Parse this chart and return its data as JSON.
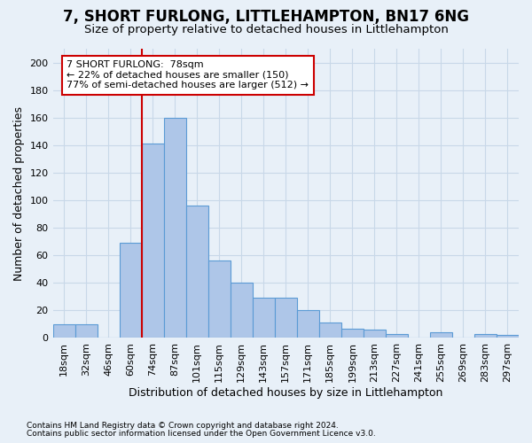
{
  "title": "7, SHORT FURLONG, LITTLEHAMPTON, BN17 6NG",
  "subtitle": "Size of property relative to detached houses in Littlehampton",
  "xlabel": "Distribution of detached houses by size in Littlehampton",
  "ylabel": "Number of detached properties",
  "footnote1": "Contains HM Land Registry data © Crown copyright and database right 2024.",
  "footnote2": "Contains public sector information licensed under the Open Government Licence v3.0.",
  "categories": [
    "18sqm",
    "32sqm",
    "46sqm",
    "60sqm",
    "74sqm",
    "87sqm",
    "101sqm",
    "115sqm",
    "129sqm",
    "143sqm",
    "157sqm",
    "171sqm",
    "185sqm",
    "199sqm",
    "213sqm",
    "227sqm",
    "241sqm",
    "255sqm",
    "269sqm",
    "283sqm",
    "297sqm"
  ],
  "values": [
    10,
    10,
    0,
    69,
    141,
    160,
    96,
    56,
    40,
    29,
    29,
    20,
    11,
    7,
    6,
    3,
    0,
    4,
    0,
    3,
    2
  ],
  "bar_color": "#aec6e8",
  "bar_edge_color": "#5b9bd5",
  "vline_x": 4.5,
  "vline_color": "#cc0000",
  "annotation_text": "7 SHORT FURLONG:  78sqm\n← 22% of detached houses are smaller (150)\n77% of semi-detached houses are larger (512) →",
  "annotation_box_color": "#ffffff",
  "annotation_box_edge_color": "#cc0000",
  "ylim": [
    0,
    210
  ],
  "yticks": [
    0,
    20,
    40,
    60,
    80,
    100,
    120,
    140,
    160,
    180,
    200
  ],
  "bg_color": "#e8f0f8",
  "grid_color": "#c8d8e8",
  "title_fontsize": 12,
  "subtitle_fontsize": 9.5,
  "axis_label_fontsize": 9,
  "tick_fontsize": 8,
  "annotation_fontsize": 8,
  "footnote_fontsize": 6.5
}
